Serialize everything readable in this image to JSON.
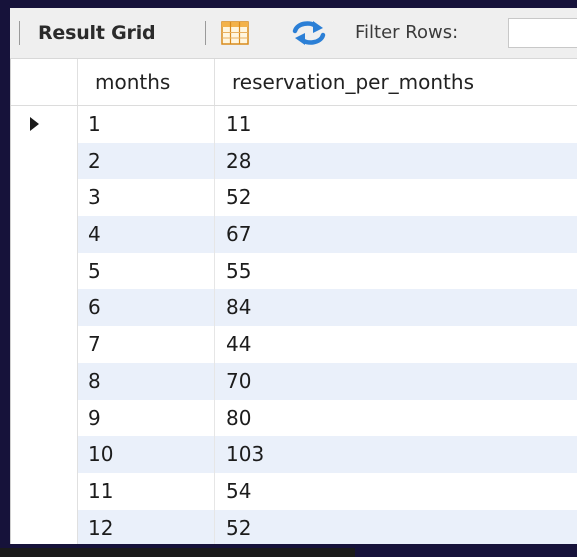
{
  "toolbar": {
    "tab_label": "Result Grid",
    "filter_label": "Filter Rows:",
    "filter_value": ""
  },
  "icons": {
    "grid_toggle": "grid-layout-icon",
    "refresh": "refresh-arrows-icon"
  },
  "colors": {
    "refresh_blue": "#2b7fd6",
    "grid_icon_orange": "#e89a2a",
    "row_stripe": "#eaf0fa"
  },
  "table": {
    "columns": [
      "months",
      "reservation_per_months"
    ],
    "rows": [
      {
        "months": "1",
        "reservation_per_months": "11"
      },
      {
        "months": "2",
        "reservation_per_months": "28"
      },
      {
        "months": "3",
        "reservation_per_months": "52"
      },
      {
        "months": "4",
        "reservation_per_months": "67"
      },
      {
        "months": "5",
        "reservation_per_months": "55"
      },
      {
        "months": "6",
        "reservation_per_months": "84"
      },
      {
        "months": "7",
        "reservation_per_months": "44"
      },
      {
        "months": "8",
        "reservation_per_months": "70"
      },
      {
        "months": "9",
        "reservation_per_months": "80"
      },
      {
        "months": "10",
        "reservation_per_months": "103"
      },
      {
        "months": "11",
        "reservation_per_months": "54"
      },
      {
        "months": "12",
        "reservation_per_months": "52"
      }
    ]
  }
}
